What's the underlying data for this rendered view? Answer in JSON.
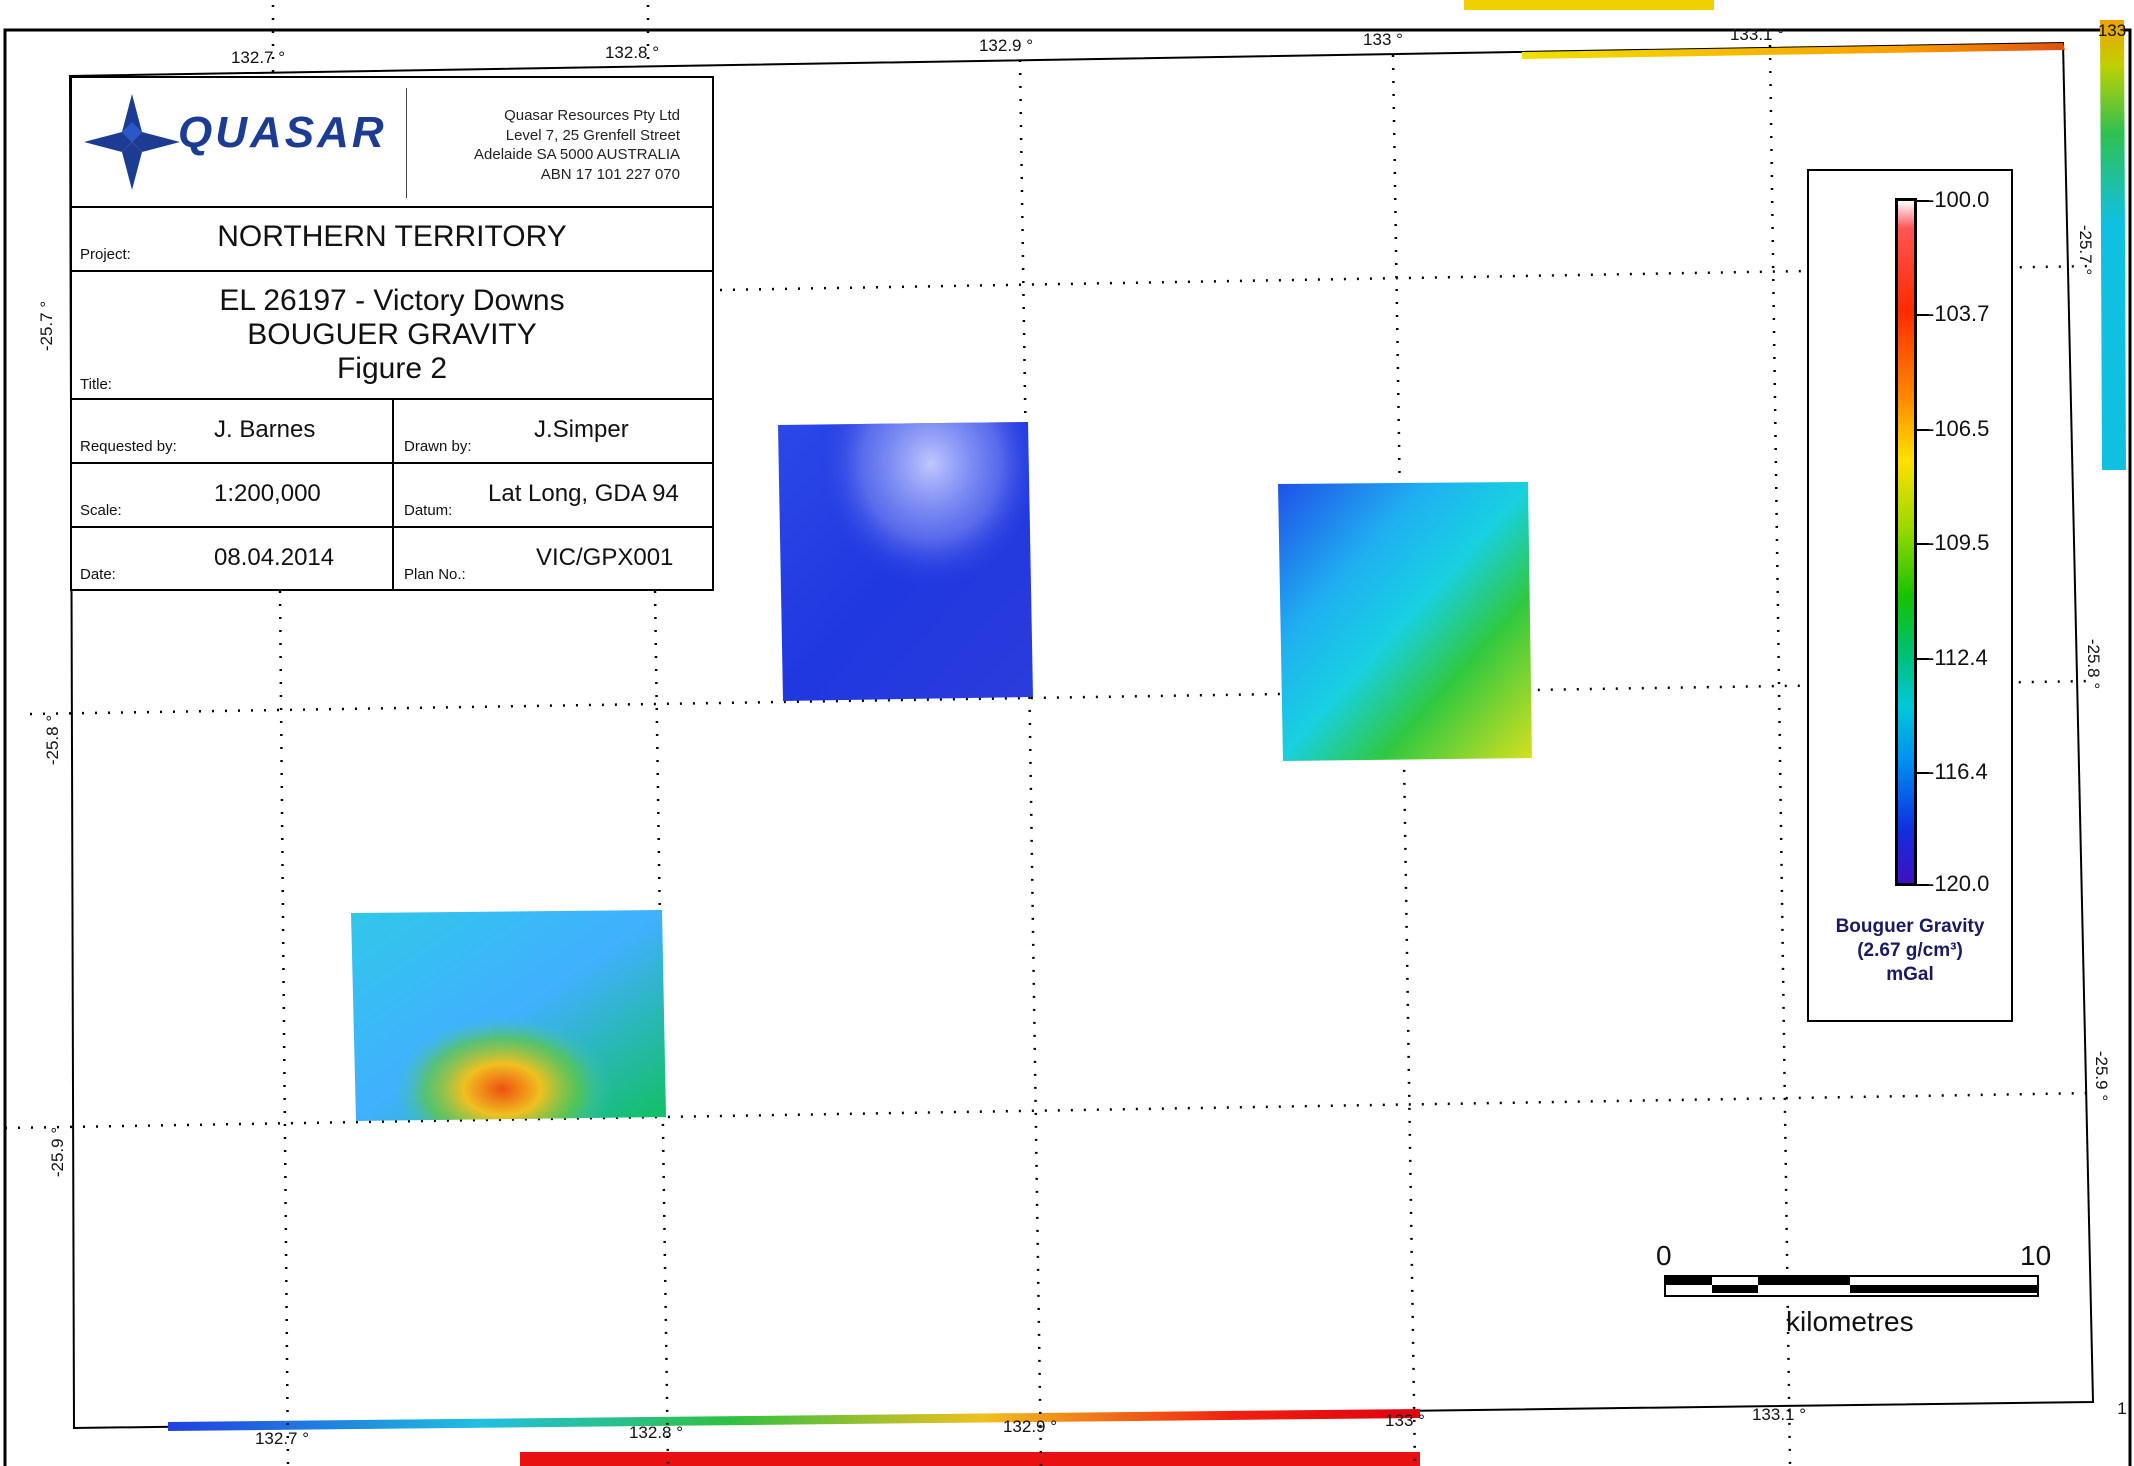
{
  "title_block": {
    "company": {
      "logo_text": "QUASAR",
      "name": "Quasar Resources Pty Ltd",
      "address1": "Level 7, 25 Grenfell Street",
      "address2": "Adelaide SA 5000 AUSTRALIA",
      "abn": "ABN 17 101 227 070"
    },
    "project_label": "Project:",
    "project": "NORTHERN TERRITORY",
    "title_label": "Title:",
    "title_line1": "EL 26197 - Victory Downs",
    "title_line2": "BOUGUER GRAVITY",
    "title_line3": "Figure 2",
    "requested_by_label": "Requested by:",
    "requested_by": "J. Barnes",
    "drawn_by_label": "Drawn by:",
    "drawn_by": "J.Simper",
    "scale_label": "Scale:",
    "scale": "1:200,000",
    "datum_label": "Datum:",
    "datum": "Lat Long, GDA 94",
    "date_label": "Date:",
    "date": "08.04.2014",
    "plan_no_label": "Plan No.:",
    "plan_no": "VIC/GPX001"
  },
  "grid": {
    "longitudes_top": [
      "132.7 °",
      "132.8 °",
      "132.9 °",
      "133 °",
      "133.1 °"
    ],
    "longitudes_bottom": [
      "132.7 °",
      "132.8 °",
      "132.9 °",
      "133 °",
      "133.1 °"
    ],
    "latitudes_left": [
      "-25.7 °",
      "-25.8 °",
      "-25.9 °"
    ],
    "latitudes_right": [
      "-25.7 °",
      "-25.8 °",
      "-25.9 °"
    ],
    "corner_top_right": "133",
    "corner_bottom_right": "1"
  },
  "legend": {
    "title_line1": "Bouguer Gravity",
    "title_line2": "(2.67 g/cm³)",
    "title_line3": "mGal",
    "values": [
      "-100.0",
      "-103.7",
      "-106.5",
      "-109.5",
      "-112.4",
      "-116.4",
      "-120.0"
    ],
    "colors": {
      "high": "#ffffff",
      "mid": "#16c200",
      "low": "#4010c0"
    }
  },
  "scale_bar": {
    "start": "0",
    "end": "10",
    "unit": "kilometres"
  }
}
